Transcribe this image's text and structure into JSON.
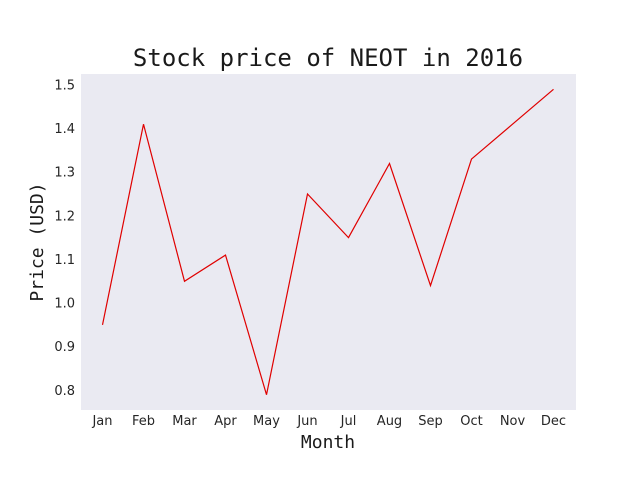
{
  "chart_data": {
    "type": "line",
    "title": "Stock price of NEOT in 2016",
    "xlabel": "Month",
    "ylabel": "Price (USD)",
    "categories": [
      "Jan",
      "Feb",
      "Mar",
      "Apr",
      "May",
      "Jun",
      "Jul",
      "Aug",
      "Sep",
      "Oct",
      "Nov",
      "Dec"
    ],
    "values": [
      0.95,
      1.41,
      1.05,
      1.11,
      0.79,
      1.25,
      1.15,
      1.32,
      1.04,
      1.33,
      1.41,
      1.49
    ],
    "ylim": [
      0.755,
      1.525
    ],
    "yticks": [
      "0.8",
      "0.9",
      "1.0",
      "1.1",
      "1.2",
      "1.3",
      "1.4",
      "1.5"
    ],
    "grid": false,
    "legend": "none",
    "line_color": "#e00000",
    "plot_background": "#eaeaf2"
  }
}
